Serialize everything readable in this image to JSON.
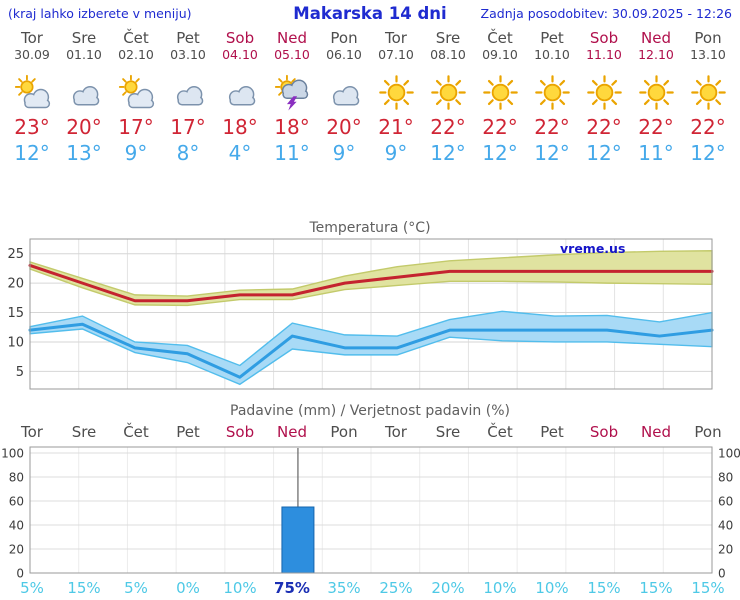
{
  "header": {
    "menu_hint": "(kraj lahko izberete v meniju)",
    "title": "Makarska 14 dni",
    "last_update": "Zadnja posodobitev: 30.09.2025 - 12:26"
  },
  "colors": {
    "header_blue": "#1f2bd0",
    "weekday_gray": "#4d4d4d",
    "weekend_red": "#b0104c",
    "tmax_red": "#d02535",
    "tmin_blue": "#45a9ea",
    "chart_title_gray": "#5f5f5f",
    "max_line": "#c4232f",
    "min_line": "#2f9de2",
    "max_band_fill": "#e0e3a0",
    "max_band_edge": "#c3ca6b",
    "min_band_fill": "#a8daf6",
    "min_band_edge": "#52bdec",
    "bar_blue": "#2d8ede",
    "bar_edge": "#1565ad",
    "prob_cyan": "#4ec9e6",
    "prob_selected": "#1b2fb4",
    "watermark_blue": "#1414c8"
  },
  "forecast": {
    "days": [
      {
        "name": "Tor",
        "date": "30.09",
        "weekend": false,
        "icon": "partly-cloudy",
        "tmax": "23°",
        "tmin": "12°"
      },
      {
        "name": "Sre",
        "date": "01.10",
        "weekend": false,
        "icon": "cloudy",
        "tmax": "20°",
        "tmin": "13°"
      },
      {
        "name": "Čet",
        "date": "02.10",
        "weekend": false,
        "icon": "partly-cloudy",
        "tmax": "17°",
        "tmin": "9°"
      },
      {
        "name": "Pet",
        "date": "03.10",
        "weekend": false,
        "icon": "cloudy",
        "tmax": "17°",
        "tmin": "8°"
      },
      {
        "name": "Sob",
        "date": "04.10",
        "weekend": true,
        "icon": "cloudy",
        "tmax": "18°",
        "tmin": "4°"
      },
      {
        "name": "Ned",
        "date": "05.10",
        "weekend": true,
        "icon": "thunderstorm",
        "tmax": "18°",
        "tmin": "11°"
      },
      {
        "name": "Pon",
        "date": "06.10",
        "weekend": false,
        "icon": "cloudy",
        "tmax": "20°",
        "tmin": "9°"
      },
      {
        "name": "Tor",
        "date": "07.10",
        "weekend": false,
        "icon": "sunny",
        "tmax": "21°",
        "tmin": "9°"
      },
      {
        "name": "Sre",
        "date": "08.10",
        "weekend": false,
        "icon": "sunny",
        "tmax": "22°",
        "tmin": "12°"
      },
      {
        "name": "Čet",
        "date": "09.10",
        "weekend": false,
        "icon": "sunny",
        "tmax": "22°",
        "tmin": "12°"
      },
      {
        "name": "Pet",
        "date": "10.10",
        "weekend": false,
        "icon": "sunny",
        "tmax": "22°",
        "tmin": "12°"
      },
      {
        "name": "Sob",
        "date": "11.10",
        "weekend": true,
        "icon": "sunny",
        "tmax": "22°",
        "tmin": "12°"
      },
      {
        "name": "Ned",
        "date": "12.10",
        "weekend": true,
        "icon": "sunny",
        "tmax": "22°",
        "tmin": "11°"
      },
      {
        "name": "Pon",
        "date": "13.10",
        "weekend": false,
        "icon": "sunny",
        "tmax": "22°",
        "tmin": "12°"
      }
    ]
  },
  "chart_data": [
    {
      "type": "line",
      "title": "Temperatura (°C)",
      "watermark": "vreme.us",
      "categories": [
        "Tor",
        "Sre",
        "Čet",
        "Pet",
        "Sob",
        "Ned",
        "Pon",
        "Tor",
        "Sre",
        "Čet",
        "Pet",
        "Sob",
        "Ned",
        "Pon"
      ],
      "yticks": [
        5,
        10,
        15,
        20,
        25
      ],
      "ylim": [
        2,
        27.5
      ],
      "grid": true,
      "series": [
        {
          "name": "max-temp",
          "values": [
            23,
            20,
            17,
            17,
            18,
            18,
            20,
            21,
            22,
            22,
            22,
            22,
            22,
            22
          ]
        },
        {
          "name": "min-temp",
          "values": [
            12,
            13,
            9,
            8,
            4,
            11,
            9,
            9,
            12,
            12,
            12,
            12,
            11,
            12
          ]
        }
      ],
      "bands": [
        {
          "name": "max-temp-range",
          "high": [
            23.6,
            20.8,
            18.0,
            17.8,
            18.8,
            19.0,
            21.2,
            22.8,
            23.8,
            24.3,
            24.8,
            25.2,
            25.4,
            25.5
          ],
          "low": [
            22.4,
            19.2,
            16.3,
            16.2,
            17.2,
            17.2,
            18.9,
            19.6,
            20.3,
            20.3,
            20.2,
            20.0,
            19.9,
            19.8
          ]
        },
        {
          "name": "min-temp-range",
          "high": [
            12.6,
            14.4,
            10.0,
            9.4,
            6.0,
            13.2,
            11.2,
            11.0,
            13.8,
            15.2,
            14.4,
            14.5,
            13.4,
            15.0
          ],
          "low": [
            11.4,
            12.2,
            8.2,
            6.5,
            2.8,
            8.8,
            7.8,
            7.8,
            10.8,
            10.2,
            10.0,
            10.0,
            9.6,
            9.2
          ]
        }
      ]
    },
    {
      "type": "bar",
      "title": "Padavine (mm) / Verjetnost padavin (%)",
      "categories": [
        "Tor",
        "Sre",
        "Čet",
        "Pet",
        "Sob",
        "Ned",
        "Pon",
        "Tor",
        "Sre",
        "Čet",
        "Pet",
        "Sob",
        "Ned",
        "Pon"
      ],
      "weekend": [
        false,
        false,
        false,
        false,
        true,
        true,
        false,
        false,
        false,
        false,
        false,
        true,
        true,
        false
      ],
      "yticks": [
        0,
        20,
        40,
        60,
        80,
        100
      ],
      "ylim": [
        0,
        105
      ],
      "precip_mm": [
        0,
        0,
        0,
        0,
        0,
        55,
        0,
        0,
        0,
        0,
        0,
        0,
        0,
        0
      ],
      "precip_whisker_max_mm": [
        0,
        0,
        0,
        0,
        0,
        100,
        0,
        0,
        0,
        0,
        0,
        0,
        0,
        0
      ],
      "probabilities": [
        "5%",
        "15%",
        "5%",
        "0%",
        "10%",
        "75%",
        "35%",
        "25%",
        "20%",
        "10%",
        "10%",
        "15%",
        "15%",
        "15%"
      ],
      "highlighted_probability_index": 5
    }
  ]
}
